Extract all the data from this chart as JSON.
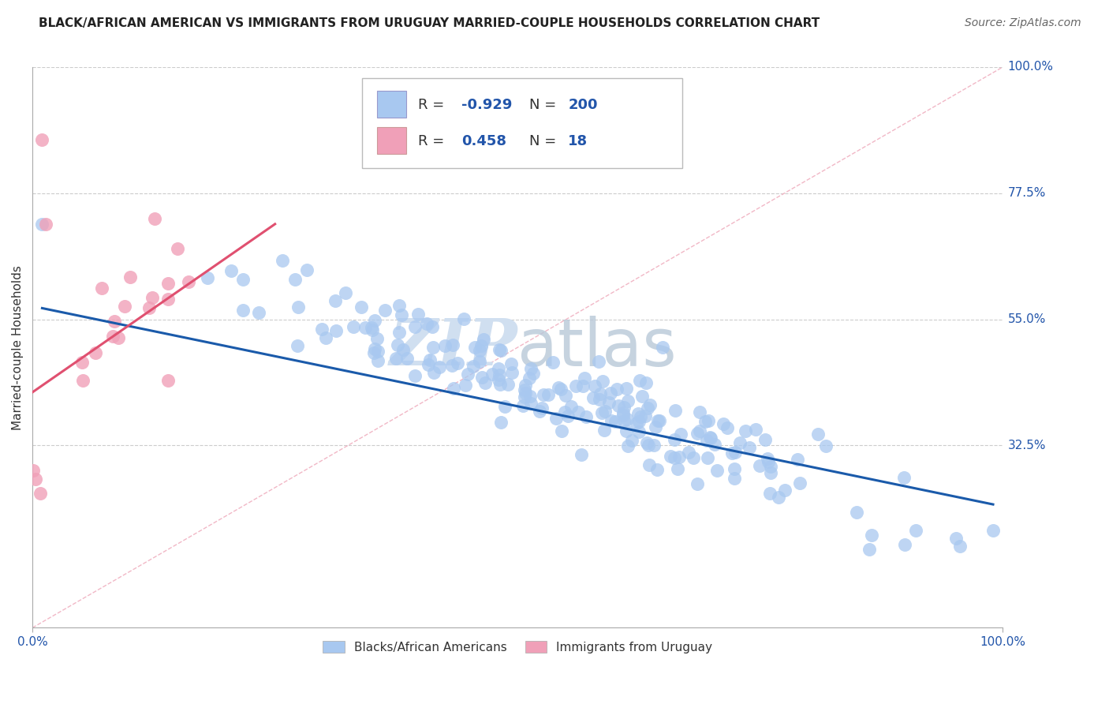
{
  "title": "BLACK/AFRICAN AMERICAN VS IMMIGRANTS FROM URUGUAY MARRIED-COUPLE HOUSEHOLDS CORRELATION CHART",
  "source": "Source: ZipAtlas.com",
  "ylabel": "Married-couple Households",
  "xlabel": "",
  "xlim": [
    0,
    1
  ],
  "ylim": [
    0,
    1
  ],
  "blue_R": -0.929,
  "blue_N": 200,
  "pink_R": 0.458,
  "pink_N": 18,
  "blue_color": "#a8c8f0",
  "blue_line_color": "#1a5aaa",
  "pink_color": "#f0a0b8",
  "pink_line_color": "#e05070",
  "diag_dash_color": "#f0b0c0",
  "watermark_color": "#d0dff0",
  "background_color": "#ffffff",
  "grid_color": "#cccccc",
  "title_color": "#222222",
  "axis_label_color": "#2255aa",
  "legend_label_color": "#2255aa",
  "source_color": "#666666"
}
